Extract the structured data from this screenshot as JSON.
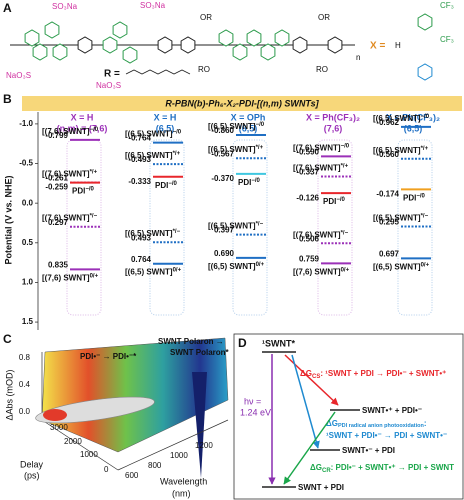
{
  "panel_a": {
    "letter": "A",
    "labels": [
      "SO₃Na",
      "SO₃Na",
      "NaO₃S",
      "NaO₃S",
      "OR",
      "OR",
      "RO",
      "RO",
      "n",
      "R =",
      "X =",
      "H",
      "CF₃",
      "CF₃"
    ]
  },
  "panel_b": {
    "letter": "B",
    "header": "R-PBN(b)-Ph₆-X₂-PDI-[(n,m) SWNTs]",
    "y_label": "Potential (V vs. NHE)",
    "ylim": [
      -1.15,
      1.6
    ],
    "yticks": [
      {
        "value": -1,
        "label": "-1.0"
      },
      -0.5,
      {
        "value": 0,
        "label": "0.0"
      },
      0.5,
      {
        "value": 1,
        "label": "1.0"
      },
      1.5
    ],
    "columns": [
      {
        "x_label": "X = H",
        "nm": "(n,m) = (7,6)",
        "color": "#9b30b8",
        "levels": [
          {
            "value": -0.799,
            "base": "[(7,6) SWNT]",
            "sup": "−/0",
            "color": "#9b30b8",
            "dashed": false
          },
          {
            "value": -0.261,
            "base": "[(7,6) SWNT]",
            "sup": "*/+",
            "color": "#9b30b8",
            "dashed": true
          },
          {
            "value": -0.259,
            "base": "PDI",
            "sup": "−/0",
            "color": "#e8262b",
            "dashed": false
          },
          {
            "value": 0.297,
            "base": "[(7,6) SWNT]",
            "sup": "*/−",
            "color": "#9b30b8",
            "dashed": true
          },
          {
            "value": 0.835,
            "base": "[(7,6) SWNT]",
            "sup": "0/+",
            "color": "#9b30b8",
            "dashed": false
          }
        ]
      },
      {
        "x_label": "X = H",
        "nm": "(6,5)",
        "color": "#1f6fc4",
        "levels": [
          {
            "value": -0.764,
            "base": "[(6,5) SWNT]",
            "sup": "−/0",
            "color": "#1f6fc4",
            "dashed": false
          },
          {
            "value": -0.493,
            "base": "[(6,5) SWNT]",
            "sup": "*/+",
            "color": "#1f6fc4",
            "dashed": true
          },
          {
            "value": -0.333,
            "base": "PDI",
            "sup": "−/0",
            "color": "#e8262b",
            "dashed": false
          },
          {
            "value": 0.493,
            "base": "[(6,5) SWNT]",
            "sup": "*/−",
            "color": "#1f6fc4",
            "dashed": true
          },
          {
            "value": 0.764,
            "base": "[(6,5) SWNT]",
            "sup": "0/+",
            "color": "#1f6fc4",
            "dashed": false
          }
        ]
      },
      {
        "x_label": "X = OPh",
        "nm": "(6,5)",
        "color": "#1f6fc4",
        "levels": [
          {
            "value": -0.86,
            "value_label": "-0.860",
            "base": "[(6,5) SWNT]",
            "sup": "−/0",
            "color": "#1f6fc4",
            "dashed": false
          },
          {
            "value": -0.567,
            "base": "[(6,5) SWNT]",
            "sup": "*/+",
            "color": "#1f6fc4",
            "dashed": true
          },
          {
            "value": -0.37,
            "value_label": "-0.370",
            "base": "PDI",
            "sup": "−/0",
            "color": "#3fc7e0",
            "dashed": false
          },
          {
            "value": 0.397,
            "base": "[(6,5) SWNT]",
            "sup": "*/−",
            "color": "#1f6fc4",
            "dashed": true
          },
          {
            "value": 0.69,
            "value_label": "0.690",
            "base": "[(6,5) SWNT]",
            "sup": "0/+",
            "color": "#1f6fc4",
            "dashed": false
          }
        ]
      },
      {
        "x_label": "X = Ph(CF₃)₂",
        "nm": "(7,6)",
        "color": "#9b30b8",
        "levels": [
          {
            "value": -0.59,
            "value_label": "-0.590",
            "base": "[(7,6) SWNT]",
            "sup": "−/0",
            "color": "#9b30b8",
            "dashed": false
          },
          {
            "value": -0.337,
            "base": "[(7,6) SWNT]",
            "sup": "*/+",
            "color": "#9b30b8",
            "dashed": true
          },
          {
            "value": -0.126,
            "base": "PDI",
            "sup": "−/0",
            "color": "#e8262b",
            "dashed": false
          },
          {
            "value": 0.506,
            "base": "[(7,6) SWNT]",
            "sup": "*/−",
            "color": "#9b30b8",
            "dashed": true
          },
          {
            "value": 0.759,
            "base": "[(7,6) SWNT]",
            "sup": "0/+",
            "color": "#9b30b8",
            "dashed": false
          }
        ]
      },
      {
        "x_label": "X = Ph(CF₃)₂",
        "nm": "(6,5)",
        "color": "#1f6fc4",
        "levels": [
          {
            "value": -0.962,
            "base": "[(6,5) SWNT]",
            "sup": "−/0",
            "color": "#1f6fc4",
            "dashed": false
          },
          {
            "value": -0.56,
            "value_label": "-0.560",
            "base": "[(6,5) SWNT]",
            "sup": "*/+",
            "color": "#1f6fc4",
            "dashed": true
          },
          {
            "value": -0.174,
            "base": "PDI",
            "sup": "−/0",
            "color": "#f0a020",
            "dashed": false
          },
          {
            "value": 0.295,
            "base": "[(6,5) SWNT]",
            "sup": "*/−",
            "color": "#1f6fc4",
            "dashed": true
          },
          {
            "value": 0.697,
            "base": "[(6,5) SWNT]",
            "sup": "0/+",
            "color": "#1f6fc4",
            "dashed": false
          }
        ]
      }
    ]
  },
  "panel_c": {
    "letter": "C",
    "z_label": "ΔAbs (mOD)",
    "z_ticks": [
      "0.8",
      "0.4",
      "0.0"
    ],
    "delay_label": [
      "Delay",
      "(ps)"
    ],
    "delay_ticks": [
      "3000",
      "2000",
      "1000",
      "0"
    ],
    "wavelength_label": [
      "Wavelength",
      "(nm)"
    ],
    "wavelength_ticks": [
      "600",
      "800",
      "1000",
      "1200"
    ],
    "annotations": [
      "PDI•⁻ → PDI•⁻*",
      "SWNT Polaron →",
      "SWNT Polaron*"
    ]
  },
  "panel_d": {
    "letter": "D",
    "excited": "¹SWNT*",
    "hv": [
      "hν =",
      "1.24 eV"
    ],
    "cs": {
      "symbol": "ΔG",
      "sub": "CS",
      "text": ": ¹SWNT + PDI → PDI•⁻ + SWNT•⁺"
    },
    "cs_state": "SWNT•⁺ + PDI•⁻",
    "pdi": {
      "symbol": "ΔG",
      "sub": "PDI radical anion photooxidation",
      "text": ":",
      "line2": "¹SWNT + PDI•⁻ → PDI + SWNT•⁻"
    },
    "pdi_state": "SWNT•⁻ + PDI",
    "cr": {
      "symbol": "ΔG",
      "sub": "CR",
      "text": ": PDI•⁻ + SWNT•⁺ → PDI + SWNT"
    },
    "ground": "SWNT + PDI"
  }
}
